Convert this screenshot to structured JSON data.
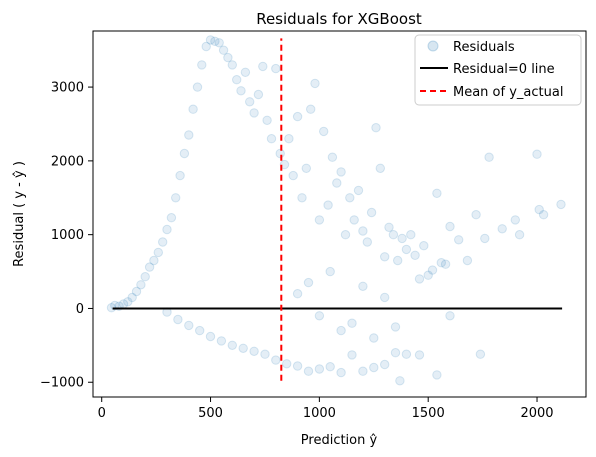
{
  "chart_data": {
    "type": "scatter",
    "title": "Residuals for XGBoost",
    "xlabel": "Prediction ŷ",
    "ylabel": "Residual ( y - ŷ )",
    "xlim": [
      -40,
      2225
    ],
    "ylim": [
      -1200,
      3760
    ],
    "x_ticks": [
      0,
      500,
      1000,
      1500,
      2000
    ],
    "y_ticks": [
      -1000,
      0,
      1000,
      2000,
      3000
    ],
    "x_tick_labels": [
      "0",
      "500",
      "1000",
      "1500",
      "2000"
    ],
    "y_tick_labels": [
      "−1000",
      "0",
      "1000",
      "2000",
      "3000"
    ],
    "grid": false,
    "legend_position": "top-right",
    "series": [
      {
        "name": "Residuals",
        "kind": "scatter",
        "color": "#1f77b4",
        "alpha": 0.12,
        "points": [
          [
            45,
            10
          ],
          [
            60,
            40
          ],
          [
            80,
            30
          ],
          [
            100,
            60
          ],
          [
            120,
            90
          ],
          [
            140,
            150
          ],
          [
            160,
            230
          ],
          [
            180,
            320
          ],
          [
            200,
            430
          ],
          [
            220,
            560
          ],
          [
            240,
            650
          ],
          [
            260,
            760
          ],
          [
            280,
            900
          ],
          [
            300,
            1070
          ],
          [
            320,
            1230
          ],
          [
            340,
            1500
          ],
          [
            360,
            1800
          ],
          [
            380,
            2100
          ],
          [
            400,
            2350
          ],
          [
            420,
            2700
          ],
          [
            440,
            3000
          ],
          [
            460,
            3300
          ],
          [
            480,
            3550
          ],
          [
            500,
            3640
          ],
          [
            520,
            3620
          ],
          [
            540,
            3600
          ],
          [
            560,
            3500
          ],
          [
            580,
            3400
          ],
          [
            600,
            3300
          ],
          [
            620,
            3100
          ],
          [
            640,
            2950
          ],
          [
            660,
            3200
          ],
          [
            680,
            2800
          ],
          [
            700,
            2650
          ],
          [
            720,
            2900
          ],
          [
            740,
            3280
          ],
          [
            760,
            2550
          ],
          [
            780,
            2300
          ],
          [
            800,
            3250
          ],
          [
            820,
            2100
          ],
          [
            840,
            1950
          ],
          [
            860,
            2300
          ],
          [
            880,
            1800
          ],
          [
            900,
            2600
          ],
          [
            920,
            1500
          ],
          [
            940,
            1900
          ],
          [
            960,
            2700
          ],
          [
            980,
            3050
          ],
          [
            1000,
            1200
          ],
          [
            1020,
            2400
          ],
          [
            1040,
            1400
          ],
          [
            1060,
            2050
          ],
          [
            1080,
            1700
          ],
          [
            1100,
            1850
          ],
          [
            1120,
            1000
          ],
          [
            1140,
            1500
          ],
          [
            1160,
            1200
          ],
          [
            1180,
            1600
          ],
          [
            1200,
            1050
          ],
          [
            1220,
            900
          ],
          [
            1240,
            1300
          ],
          [
            1260,
            2450
          ],
          [
            1280,
            1900
          ],
          [
            1300,
            700
          ],
          [
            1320,
            1100
          ],
          [
            1340,
            1000
          ],
          [
            1360,
            650
          ],
          [
            1380,
            950
          ],
          [
            1400,
            800
          ],
          [
            1420,
            1000
          ],
          [
            1440,
            720
          ],
          [
            1460,
            400
          ],
          [
            1480,
            850
          ],
          [
            1500,
            450
          ],
          [
            1520,
            520
          ],
          [
            1540,
            1560
          ],
          [
            1560,
            620
          ],
          [
            1580,
            600
          ],
          [
            1600,
            1110
          ],
          [
            1640,
            930
          ],
          [
            1680,
            650
          ],
          [
            1720,
            1270
          ],
          [
            1760,
            950
          ],
          [
            1780,
            2050
          ],
          [
            1840,
            1080
          ],
          [
            1900,
            1200
          ],
          [
            1920,
            1000
          ],
          [
            2000,
            2090
          ],
          [
            2010,
            1340
          ],
          [
            2030,
            1270
          ],
          [
            2110,
            1410
          ],
          [
            300,
            -50
          ],
          [
            350,
            -150
          ],
          [
            400,
            -230
          ],
          [
            450,
            -300
          ],
          [
            500,
            -380
          ],
          [
            550,
            -440
          ],
          [
            600,
            -500
          ],
          [
            650,
            -540
          ],
          [
            700,
            -580
          ],
          [
            750,
            -620
          ],
          [
            800,
            -700
          ],
          [
            850,
            -750
          ],
          [
            900,
            -780
          ],
          [
            950,
            -850
          ],
          [
            1000,
            -820
          ],
          [
            1050,
            -790
          ],
          [
            1100,
            -870
          ],
          [
            1150,
            -630
          ],
          [
            1200,
            -850
          ],
          [
            1250,
            -800
          ],
          [
            1300,
            -760
          ],
          [
            1350,
            -600
          ],
          [
            1370,
            -980
          ],
          [
            1400,
            -620
          ],
          [
            1460,
            -630
          ],
          [
            1540,
            -900
          ],
          [
            1600,
            -100
          ],
          [
            1740,
            -620
          ],
          [
            900,
            200
          ],
          [
            950,
            350
          ],
          [
            1000,
            -100
          ],
          [
            1050,
            500
          ],
          [
            1100,
            -300
          ],
          [
            1150,
            -200
          ],
          [
            1200,
            300
          ],
          [
            1250,
            -400
          ],
          [
            1300,
            150
          ],
          [
            1350,
            -250
          ]
        ]
      },
      {
        "name": "Residual=0 line",
        "kind": "line",
        "color": "#000000",
        "points": [
          [
            50,
            0
          ],
          [
            2115,
            0
          ]
        ]
      },
      {
        "name": "Mean of y_actual",
        "kind": "vline",
        "color": "#ff0000",
        "dash": "dashed",
        "x": 825,
        "y_range": [
          -980,
          3660
        ]
      }
    ]
  }
}
